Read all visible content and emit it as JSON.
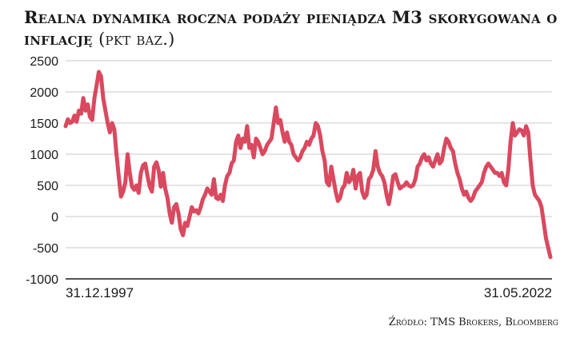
{
  "header": {
    "title": "Realna dynamika roczna podaży pieniądza M3 skorygowana o inflację",
    "unit": "(pkt baz.)"
  },
  "footer": {
    "source": "Źródło: TMS Brokers, Bloomberg"
  },
  "colors": {
    "line": "#d9495f",
    "grid": "#c8c8c8",
    "axis": "#1a1a1a"
  },
  "chart_data": {
    "type": "line",
    "title": "Realna dynamika roczna podaży pieniądza M3 skorygowana o inflację (pkt baz.)",
    "xlabel": "",
    "ylabel": "",
    "x_start_label": "31.12.1997",
    "x_end_label": "31.05.2022",
    "ylim": [
      -1000,
      2500
    ],
    "yticks": [
      "2500",
      "2000",
      "1500",
      "1000",
      "500",
      "0",
      "-500",
      "-1000"
    ],
    "ytick_values": [
      2500,
      2000,
      1500,
      1000,
      500,
      0,
      -500,
      -1000
    ],
    "grid": true,
    "series": [
      {
        "values": [
          1450,
          1560,
          1500,
          1520,
          1620,
          1520,
          1700,
          1650,
          1900,
          1700,
          1800,
          1600,
          1550,
          1900,
          2100,
          2320,
          2250,
          1900,
          1700,
          1500,
          1350,
          1500,
          1400,
          1000,
          650,
          320,
          400,
          550,
          1000,
          700,
          480,
          430,
          500,
          380,
          700,
          820,
          850,
          650,
          480,
          400,
          800,
          870,
          750,
          480,
          700,
          450,
          300,
          50,
          -100,
          150,
          200,
          50,
          -200,
          -300,
          -100,
          -150,
          0,
          150,
          80,
          100,
          50,
          150,
          280,
          350,
          450,
          400,
          350,
          600,
          300,
          280,
          350,
          250,
          500,
          650,
          700,
          850,
          900,
          1200,
          1300,
          1100,
          1250,
          1200,
          1450,
          1100,
          1150,
          950,
          1250,
          1200,
          1100,
          1000,
          1050,
          1150,
          1200,
          1250,
          1500,
          1750,
          1500,
          1550,
          1350,
          1200,
          1350,
          1200,
          1150,
          1000,
          950,
          900,
          950,
          1050,
          1100,
          1200,
          1150,
          1250,
          1300,
          1500,
          1450,
          1300,
          1050,
          900,
          550,
          500,
          800,
          600,
          400,
          250,
          300,
          450,
          500,
          700,
          550,
          600,
          750,
          450,
          650,
          700,
          400,
          300,
          350,
          600,
          650,
          750,
          1050,
          800,
          700,
          650,
          550,
          350,
          200,
          400,
          650,
          680,
          550,
          450,
          480,
          500,
          550,
          500,
          480,
          500,
          600,
          800,
          850,
          950,
          1000,
          900,
          950,
          850,
          800,
          900,
          1000,
          850,
          900,
          1100,
          1250,
          1200,
          1100,
          1050,
          850,
          700,
          600,
          450,
          350,
          400,
          300,
          250,
          300,
          400,
          450,
          500,
          550,
          700,
          800,
          850,
          800,
          750,
          700,
          700,
          650,
          700,
          550,
          500,
          750,
          1200,
          1500,
          1300,
          1350,
          1400,
          1380,
          1300,
          1450,
          1350,
          900,
          500,
          350,
          300,
          250,
          150,
          -100,
          -350,
          -500,
          -650
        ]
      }
    ]
  }
}
